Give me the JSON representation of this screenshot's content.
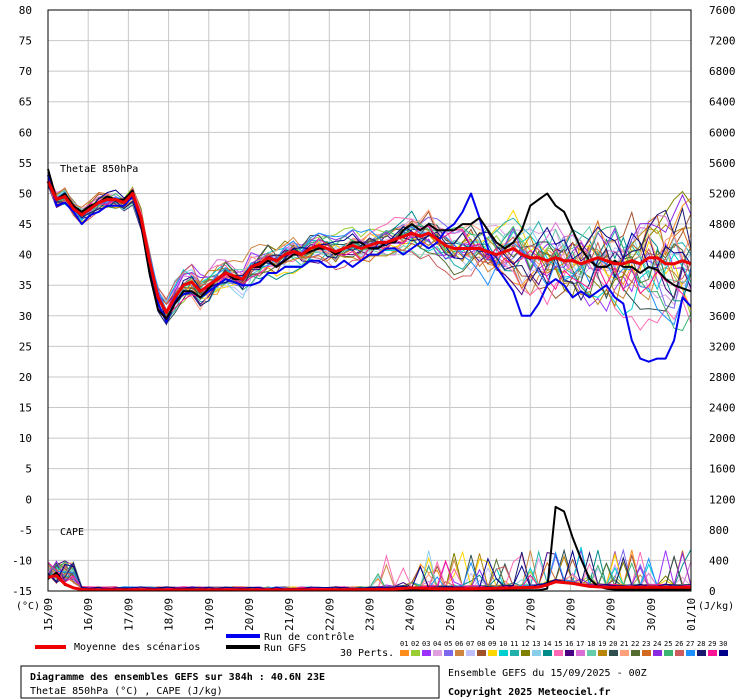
{
  "chart_data": {
    "type": "line",
    "title": "Diagramme des ensembles GEFS sur 384h : 40.6N 23E",
    "subtitle": "ThetaE 850hPa (°C) , CAPE (J/kg)",
    "run_info": "Ensemble GEFS du 15/09/2025 - 00Z",
    "copyright": "Copyright 2025 Meteociel.fr",
    "left_axis": {
      "label": "(°C)",
      "min": -15,
      "max": 80,
      "ticks": [
        80,
        75,
        70,
        65,
        60,
        55,
        50,
        45,
        40,
        35,
        30,
        25,
        20,
        15,
        10,
        5,
        0,
        -5,
        -10,
        -15
      ]
    },
    "right_axis": {
      "label": "(J/kg)",
      "min": 0,
      "max": 7600,
      "ticks": [
        7600,
        7200,
        6800,
        6400,
        6000,
        5600,
        5200,
        4800,
        4400,
        4000,
        3600,
        3200,
        2800,
        2400,
        2000,
        1600,
        1200,
        800,
        400,
        0
      ]
    },
    "x_axis": {
      "start": "15/09",
      "end": "01/10",
      "labels": [
        "15/09",
        "16/09",
        "17/09",
        "18/09",
        "19/09",
        "20/09",
        "21/09",
        "22/09",
        "23/09",
        "24/09",
        "25/09",
        "26/09",
        "27/09",
        "28/09",
        "29/09",
        "30/09",
        "01/10"
      ]
    },
    "grid": true,
    "panel_labels": {
      "thetae": "ThetaE 850hPa",
      "cape": "CAPE"
    },
    "series": [
      {
        "name": "Moyenne des scénarios",
        "color": "#ee0000",
        "role": "mean"
      },
      {
        "name": "Run de contrôle",
        "color": "#0000ee",
        "role": "control"
      },
      {
        "name": "Run GFS",
        "color": "#000000",
        "role": "gfs"
      }
    ],
    "perturbations": {
      "label": "30 Perts.",
      "labels": [
        "01",
        "02",
        "03",
        "04",
        "05",
        "06",
        "07",
        "08",
        "09",
        "10",
        "11",
        "12",
        "13",
        "14",
        "15",
        "16",
        "17",
        "18",
        "19",
        "20",
        "21",
        "22",
        "23",
        "24",
        "25",
        "26",
        "27",
        "28",
        "29",
        "30"
      ],
      "colors": [
        "#ff8c1a",
        "#9acd32",
        "#9b30ff",
        "#e0a0e0",
        "#7b68ee",
        "#cd853f",
        "#c0c0ff",
        "#a0522d",
        "#ffd700",
        "#00ced1",
        "#20b2aa",
        "#808000",
        "#87ceeb",
        "#008b8b",
        "#ff69b4",
        "#4b0082",
        "#da70d6",
        "#66cdaa",
        "#b8860b",
        "#2f4f4f",
        "#ffa07a",
        "#556b2f",
        "#d2691e",
        "#8a2be2",
        "#3cb371",
        "#cd5c5c",
        "#1e90ff",
        "#191970",
        "#ff1493",
        "#00008b"
      ]
    },
    "thetae_mean": [
      [
        0,
        52
      ],
      [
        1,
        49
      ],
      [
        2,
        49.5
      ],
      [
        3,
        47.5
      ],
      [
        4,
        46.5
      ],
      [
        5,
        47.5
      ],
      [
        6,
        48.5
      ],
      [
        7,
        49
      ],
      [
        8,
        49
      ],
      [
        9,
        48.5
      ],
      [
        10,
        50
      ],
      [
        11,
        46
      ],
      [
        12,
        39
      ],
      [
        13,
        33
      ],
      [
        14,
        30.5
      ],
      [
        15,
        33
      ],
      [
        16,
        35
      ],
      [
        17,
        35.5
      ],
      [
        18,
        34
      ],
      [
        19,
        35
      ],
      [
        20,
        36
      ],
      [
        21,
        37
      ],
      [
        22,
        36.5
      ],
      [
        23,
        36
      ],
      [
        24,
        38
      ],
      [
        25,
        38.5
      ],
      [
        26,
        39.5
      ],
      [
        27,
        39
      ],
      [
        28,
        40
      ],
      [
        29,
        40.5
      ],
      [
        30,
        40
      ],
      [
        31,
        41
      ],
      [
        32,
        41.5
      ],
      [
        33,
        41
      ],
      [
        34,
        40.5
      ],
      [
        35,
        41
      ],
      [
        36,
        41.5
      ],
      [
        37,
        41
      ],
      [
        38,
        41.5
      ],
      [
        39,
        42
      ],
      [
        40,
        42
      ],
      [
        41,
        42.5
      ],
      [
        42,
        43
      ],
      [
        43,
        43.5
      ],
      [
        44,
        43
      ],
      [
        45,
        43.5
      ],
      [
        46,
        42.5
      ],
      [
        47,
        41.5
      ],
      [
        48,
        41
      ],
      [
        49,
        41
      ],
      [
        50,
        41
      ],
      [
        51,
        41
      ],
      [
        52,
        40.5
      ],
      [
        53,
        40
      ],
      [
        54,
        40.5
      ],
      [
        55,
        41
      ],
      [
        56,
        40
      ],
      [
        57,
        39.5
      ],
      [
        58,
        39.5
      ],
      [
        59,
        39
      ],
      [
        60,
        39.5
      ],
      [
        61,
        39
      ],
      [
        62,
        39
      ],
      [
        63,
        38.5
      ],
      [
        64,
        39
      ],
      [
        65,
        39.5
      ],
      [
        66,
        39
      ],
      [
        67,
        38.5
      ],
      [
        68,
        38.5
      ],
      [
        69,
        39
      ],
      [
        70,
        38.5
      ],
      [
        71,
        39.5
      ],
      [
        72,
        39.5
      ],
      [
        73,
        38.5
      ],
      [
        74,
        38.5
      ],
      [
        75,
        39
      ],
      [
        76,
        38.5
      ]
    ],
    "thetae_control": [
      [
        0,
        53
      ],
      [
        1,
        48
      ],
      [
        2,
        48.5
      ],
      [
        3,
        47
      ],
      [
        4,
        45
      ],
      [
        5,
        46.5
      ],
      [
        6,
        47
      ],
      [
        7,
        48
      ],
      [
        8,
        48
      ],
      [
        9,
        48
      ],
      [
        10,
        49.5
      ],
      [
        11,
        45
      ],
      [
        12,
        38
      ],
      [
        13,
        32
      ],
      [
        14,
        29
      ],
      [
        15,
        32.5
      ],
      [
        16,
        33.5
      ],
      [
        17,
        34
      ],
      [
        18,
        33
      ],
      [
        19,
        34
      ],
      [
        20,
        35
      ],
      [
        21,
        36
      ],
      [
        22,
        35.5
      ],
      [
        23,
        35
      ],
      [
        24,
        35
      ],
      [
        25,
        35.5
      ],
      [
        26,
        37
      ],
      [
        27,
        37
      ],
      [
        28,
        38
      ],
      [
        29,
        38
      ],
      [
        30,
        38
      ],
      [
        31,
        39
      ],
      [
        32,
        39
      ],
      [
        33,
        38
      ],
      [
        34,
        38
      ],
      [
        35,
        39
      ],
      [
        36,
        38
      ],
      [
        37,
        39
      ],
      [
        38,
        40
      ],
      [
        39,
        40
      ],
      [
        40,
        41
      ],
      [
        41,
        41
      ],
      [
        42,
        40
      ],
      [
        43,
        41
      ],
      [
        44,
        42
      ],
      [
        45,
        41
      ],
      [
        46,
        42
      ],
      [
        47,
        44
      ],
      [
        48,
        45
      ],
      [
        49,
        47
      ],
      [
        50,
        50
      ],
      [
        51,
        46
      ],
      [
        52,
        41
      ],
      [
        53,
        38
      ],
      [
        54,
        36
      ],
      [
        55,
        34
      ],
      [
        56,
        30
      ],
      [
        57,
        30
      ],
      [
        58,
        32
      ],
      [
        59,
        35
      ],
      [
        60,
        36
      ],
      [
        61,
        35
      ],
      [
        62,
        33
      ],
      [
        63,
        34
      ],
      [
        64,
        33
      ],
      [
        65,
        34
      ],
      [
        66,
        35
      ],
      [
        67,
        33
      ],
      [
        68,
        32
      ],
      [
        69,
        26
      ],
      [
        70,
        23
      ],
      [
        71,
        22.5
      ],
      [
        72,
        23
      ],
      [
        73,
        23
      ],
      [
        74,
        26
      ],
      [
        75,
        33
      ],
      [
        76,
        31.5
      ]
    ],
    "thetae_gfs": [
      [
        0,
        54
      ],
      [
        1,
        49
      ],
      [
        2,
        50
      ],
      [
        3,
        48
      ],
      [
        4,
        47
      ],
      [
        5,
        48
      ],
      [
        6,
        48.5
      ],
      [
        7,
        49.5
      ],
      [
        8,
        49
      ],
      [
        9,
        49
      ],
      [
        10,
        50.5
      ],
      [
        11,
        45
      ],
      [
        12,
        37
      ],
      [
        13,
        31
      ],
      [
        14,
        29.5
      ],
      [
        15,
        32
      ],
      [
        16,
        34
      ],
      [
        17,
        34
      ],
      [
        18,
        33
      ],
      [
        19,
        34.5
      ],
      [
        20,
        36
      ],
      [
        21,
        37
      ],
      [
        22,
        36
      ],
      [
        23,
        36
      ],
      [
        24,
        38
      ],
      [
        25,
        38
      ],
      [
        26,
        39
      ],
      [
        27,
        38
      ],
      [
        28,
        39
      ],
      [
        29,
        40
      ],
      [
        30,
        40
      ],
      [
        31,
        40.5
      ],
      [
        32,
        41
      ],
      [
        33,
        41
      ],
      [
        34,
        40
      ],
      [
        35,
        41
      ],
      [
        36,
        42
      ],
      [
        37,
        42
      ],
      [
        38,
        41
      ],
      [
        39,
        41
      ],
      [
        40,
        42
      ],
      [
        41,
        42
      ],
      [
        42,
        44
      ],
      [
        43,
        45
      ],
      [
        44,
        44
      ],
      [
        45,
        45
      ],
      [
        46,
        44
      ],
      [
        47,
        44
      ],
      [
        48,
        44
      ],
      [
        49,
        45
      ],
      [
        50,
        45
      ],
      [
        51,
        46
      ],
      [
        52,
        44
      ],
      [
        53,
        42
      ],
      [
        54,
        41
      ],
      [
        55,
        42
      ],
      [
        56,
        44
      ],
      [
        57,
        48
      ],
      [
        58,
        49
      ],
      [
        59,
        50
      ],
      [
        60,
        48
      ],
      [
        61,
        47
      ],
      [
        62,
        44
      ],
      [
        63,
        41
      ],
      [
        64,
        39
      ],
      [
        65,
        38
      ],
      [
        66,
        38
      ],
      [
        67,
        39
      ],
      [
        68,
        38
      ],
      [
        69,
        38
      ],
      [
        70,
        37
      ],
      [
        71,
        38
      ],
      [
        72,
        37.5
      ],
      [
        73,
        36
      ],
      [
        74,
        35
      ],
      [
        75,
        34.5
      ],
      [
        76,
        34
      ]
    ],
    "cape_gfs": [
      [
        0,
        160
      ],
      [
        1,
        240
      ],
      [
        2,
        80
      ],
      [
        3,
        40
      ],
      [
        4,
        20
      ],
      [
        5,
        10
      ],
      [
        6,
        10
      ],
      [
        7,
        10
      ],
      [
        8,
        10
      ],
      [
        9,
        10
      ],
      [
        10,
        10
      ],
      [
        11,
        10
      ],
      [
        12,
        10
      ],
      [
        13,
        10
      ],
      [
        14,
        10
      ],
      [
        15,
        10
      ],
      [
        16,
        10
      ],
      [
        17,
        10
      ],
      [
        18,
        10
      ],
      [
        19,
        10
      ],
      [
        20,
        10
      ],
      [
        21,
        10
      ],
      [
        22,
        10
      ],
      [
        23,
        10
      ],
      [
        24,
        10
      ],
      [
        25,
        10
      ],
      [
        26,
        10
      ],
      [
        27,
        10
      ],
      [
        28,
        10
      ],
      [
        29,
        10
      ],
      [
        30,
        10
      ],
      [
        31,
        10
      ],
      [
        32,
        10
      ],
      [
        33,
        10
      ],
      [
        34,
        10
      ],
      [
        35,
        10
      ],
      [
        36,
        10
      ],
      [
        37,
        10
      ],
      [
        38,
        10
      ],
      [
        39,
        10
      ],
      [
        40,
        10
      ],
      [
        41,
        10
      ],
      [
        42,
        10
      ],
      [
        43,
        20
      ],
      [
        44,
        10
      ],
      [
        45,
        10
      ],
      [
        46,
        10
      ],
      [
        47,
        10
      ],
      [
        48,
        10
      ],
      [
        49,
        10
      ],
      [
        50,
        10
      ],
      [
        51,
        10
      ],
      [
        52,
        10
      ],
      [
        53,
        10
      ],
      [
        54,
        10
      ],
      [
        55,
        10
      ],
      [
        56,
        10
      ],
      [
        57,
        10
      ],
      [
        58,
        10
      ],
      [
        59,
        30
      ],
      [
        60,
        1100
      ],
      [
        61,
        1040
      ],
      [
        62,
        700
      ],
      [
        63,
        420
      ],
      [
        64,
        160
      ],
      [
        65,
        60
      ],
      [
        66,
        30
      ],
      [
        67,
        20
      ],
      [
        68,
        20
      ],
      [
        69,
        20
      ],
      [
        70,
        20
      ],
      [
        71,
        20
      ],
      [
        72,
        20
      ],
      [
        73,
        20
      ],
      [
        74,
        20
      ],
      [
        75,
        20
      ],
      [
        76,
        20
      ]
    ],
    "cape_mean": [
      [
        0,
        180
      ],
      [
        1,
        200
      ],
      [
        2,
        90
      ],
      [
        3,
        40
      ],
      [
        4,
        20
      ],
      [
        5,
        15
      ],
      [
        6,
        15
      ],
      [
        10,
        15
      ],
      [
        20,
        15
      ],
      [
        30,
        15
      ],
      [
        40,
        20
      ],
      [
        43,
        40
      ],
      [
        46,
        30
      ],
      [
        50,
        30
      ],
      [
        55,
        40
      ],
      [
        58,
        50
      ],
      [
        59,
        80
      ],
      [
        60,
        120
      ],
      [
        61,
        110
      ],
      [
        62,
        100
      ],
      [
        63,
        80
      ],
      [
        64,
        60
      ],
      [
        66,
        50
      ],
      [
        68,
        50
      ],
      [
        70,
        50
      ],
      [
        72,
        50
      ],
      [
        74,
        50
      ],
      [
        76,
        50
      ]
    ]
  }
}
